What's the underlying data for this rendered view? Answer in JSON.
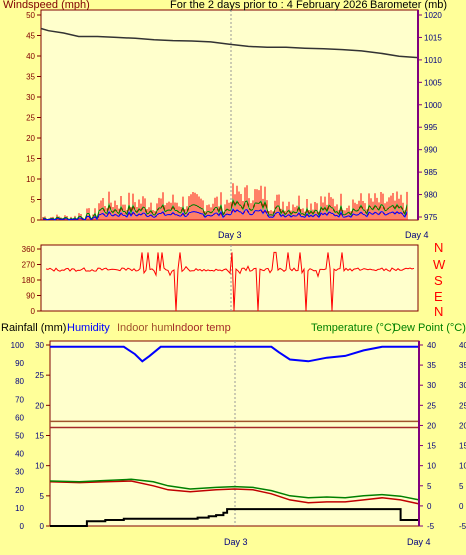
{
  "header": {
    "left_label": "Windspeed (mph)",
    "center_label": "For the 2 days prior to : 4 February 2026",
    "right_label": "Barometer (mb)"
  },
  "colors": {
    "background": "#ffff99",
    "plot_bg": "#ffffcc",
    "wind": "#ff0000",
    "gust": "#008000",
    "avg_wind": "#0000ff",
    "barometer": "#333333",
    "humidity": "#0000ff",
    "rain": "#000000",
    "temperature": "#c00000",
    "dewpoint": "#008000",
    "indoor_hum": "#a0522d",
    "indoor_temp": "#a52a2a",
    "axis_left": "#800000",
    "axis_right": "#800080"
  },
  "chart_data": [
    {
      "type": "line",
      "name": "wind-barometer",
      "x_ticks": [
        "Day 3",
        "Day 4"
      ],
      "y_left": {
        "label": "Windspeed (mph)",
        "min": 0,
        "max": 50,
        "ticks": [
          "0",
          "5",
          "10",
          "15",
          "20",
          "25",
          "30",
          "35",
          "40",
          "45",
          "50"
        ]
      },
      "y_right": {
        "label": "Barometer (mb)",
        "min": 975,
        "max": 1020,
        "ticks": [
          "975",
          "980",
          "985",
          "990",
          "995",
          "1000",
          "1005",
          "1010",
          "1015",
          "1020"
        ]
      },
      "series": [
        {
          "name": "Barometer (mb)",
          "axis": "right",
          "x": [
            0,
            0.02,
            0.06,
            0.1,
            0.15,
            0.2,
            0.25,
            0.3,
            0.35,
            0.4,
            0.45,
            0.5,
            0.55,
            0.6,
            0.65,
            0.7,
            0.75,
            0.8,
            0.85,
            0.9,
            0.95,
            1.0
          ],
          "values": [
            1017.0,
            1016.5,
            1016.0,
            1015.2,
            1015.2,
            1015.0,
            1014.8,
            1014.5,
            1014.3,
            1014.2,
            1014.0,
            1013.5,
            1013.0,
            1012.8,
            1012.8,
            1012.6,
            1012.5,
            1012.3,
            1012.0,
            1011.5,
            1010.8,
            1010.5
          ]
        }
      ]
    },
    {
      "type": "line",
      "name": "wind-direction",
      "y_left": {
        "min": 0,
        "max": 360,
        "ticks": [
          "0",
          "90",
          "180",
          "270",
          "360"
        ]
      },
      "compass": [
        "N",
        "W",
        "S",
        "E",
        "N"
      ]
    },
    {
      "type": "line",
      "name": "rain-humidity-temperature",
      "x_ticks": [
        "Day 3",
        "Day 4"
      ],
      "legend": [
        "Rainfall (mm)",
        "Humidity",
        "Indoor hum",
        "Indoor temp",
        "Temperature (°C)",
        "Dew Point (°C)"
      ],
      "y_hum": {
        "min": 0,
        "max": 100,
        "ticks": [
          "0",
          "10",
          "20",
          "30",
          "40",
          "50",
          "60",
          "70",
          "80",
          "90",
          "100"
        ]
      },
      "y_rain": {
        "min": 0,
        "max": 30,
        "ticks": [
          "0",
          "5",
          "10",
          "15",
          "20",
          "25",
          "30"
        ]
      },
      "y_temp": {
        "min": -5,
        "max": 40,
        "ticks": [
          "-5",
          "0",
          "5",
          "10",
          "15",
          "20",
          "25",
          "30",
          "35",
          "40"
        ]
      },
      "series": [
        {
          "name": "Humidity",
          "axis": "hum",
          "x": [
            0,
            0.1,
            0.2,
            0.23,
            0.25,
            0.27,
            0.3,
            0.4,
            0.5,
            0.55,
            0.6,
            0.62,
            0.65,
            0.7,
            0.75,
            0.8,
            0.85,
            0.9,
            1.0
          ],
          "values": [
            99,
            99,
            99,
            95,
            91,
            94,
            99,
            99,
            99,
            99,
            99,
            96,
            92,
            91,
            93,
            94,
            97,
            99,
            99
          ]
        },
        {
          "name": "Temperature (°C)",
          "axis": "temp",
          "x": [
            0,
            0.08,
            0.15,
            0.22,
            0.28,
            0.32,
            0.38,
            0.45,
            0.5,
            0.55,
            0.6,
            0.65,
            0.7,
            0.75,
            0.8,
            0.85,
            0.9,
            0.95,
            1.0
          ],
          "values": [
            6.0,
            5.8,
            6.0,
            6.2,
            5.0,
            4.0,
            3.5,
            4.0,
            4.2,
            4.0,
            3.0,
            1.5,
            0.8,
            1.0,
            1.0,
            1.5,
            2.0,
            1.5,
            0.5
          ]
        },
        {
          "name": "Dew Point (°C)",
          "axis": "temp",
          "x": [
            0,
            0.08,
            0.15,
            0.22,
            0.28,
            0.32,
            0.38,
            0.45,
            0.5,
            0.55,
            0.6,
            0.65,
            0.7,
            0.75,
            0.8,
            0.85,
            0.9,
            0.95,
            1.0
          ],
          "values": [
            6.2,
            6.0,
            6.3,
            6.6,
            6.0,
            5.0,
            4.2,
            4.6,
            4.8,
            4.6,
            3.8,
            2.5,
            2.0,
            2.2,
            2.0,
            2.5,
            2.8,
            2.4,
            1.5
          ]
        },
        {
          "name": "Indoor temp",
          "axis": "temp",
          "x": [
            0,
            1
          ],
          "values": [
            19.5,
            19.5
          ]
        },
        {
          "name": "Indoor hum",
          "axis": "temp",
          "x": [
            0,
            1
          ],
          "values": [
            21.0,
            21.0
          ]
        },
        {
          "name": "Rainfall (mm)",
          "axis": "rain",
          "x": [
            0,
            0.08,
            0.1,
            0.15,
            0.2,
            0.3,
            0.4,
            0.43,
            0.45,
            0.47,
            0.48,
            0.6,
            0.8,
            0.95,
            0.97,
            1.0
          ],
          "values": [
            0,
            0,
            0.8,
            1.0,
            1.2,
            1.2,
            1.4,
            1.6,
            1.8,
            2.2,
            2.8,
            2.8,
            2.8,
            1.0,
            1.0,
            0
          ]
        }
      ]
    }
  ]
}
